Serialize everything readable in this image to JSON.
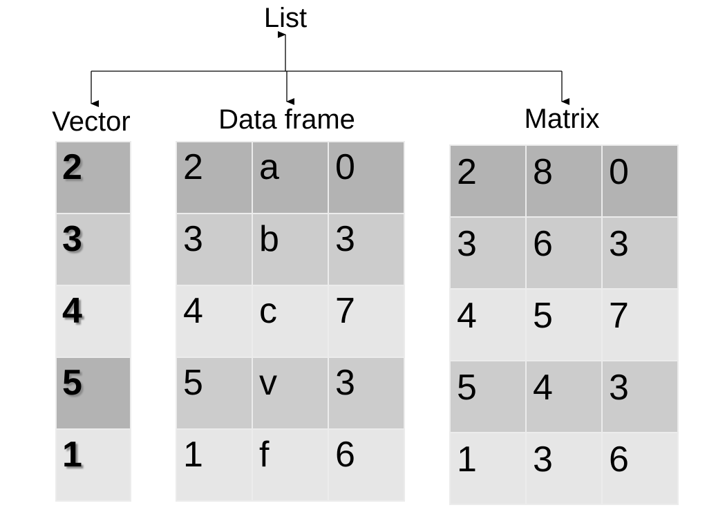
{
  "list": {
    "title": "List"
  },
  "vector": {
    "title": "Vector",
    "rows": [
      {
        "value": "2",
        "shade": "dark"
      },
      {
        "value": "3",
        "shade": "mid"
      },
      {
        "value": "4",
        "shade": "light"
      },
      {
        "value": "5",
        "shade": "dark"
      },
      {
        "value": "1",
        "shade": "light"
      }
    ]
  },
  "data_frame": {
    "title": "Data frame",
    "rows": [
      {
        "cells": [
          "2",
          "a",
          "0"
        ],
        "shade": "dark"
      },
      {
        "cells": [
          "3",
          "b",
          "3"
        ],
        "shade": "mid"
      },
      {
        "cells": [
          "4",
          "c",
          "7"
        ],
        "shade": "light"
      },
      {
        "cells": [
          "5",
          "v",
          "3"
        ],
        "shade": "mid"
      },
      {
        "cells": [
          "1",
          "f",
          "6"
        ],
        "shade": "light"
      }
    ]
  },
  "matrix": {
    "title": "Matrix",
    "rows": [
      {
        "cells": [
          "2",
          "8",
          "0"
        ],
        "shade": "dark"
      },
      {
        "cells": [
          "3",
          "6",
          "3"
        ],
        "shade": "mid"
      },
      {
        "cells": [
          "4",
          "5",
          "7"
        ],
        "shade": "light"
      },
      {
        "cells": [
          "5",
          "4",
          "3"
        ],
        "shade": "mid"
      },
      {
        "cells": [
          "1",
          "3",
          "6"
        ],
        "shade": "light"
      }
    ]
  },
  "colors": {
    "dark": "#b3b3b3",
    "mid": "#cccccc",
    "light": "#e6e6e6",
    "line": "#000000"
  }
}
